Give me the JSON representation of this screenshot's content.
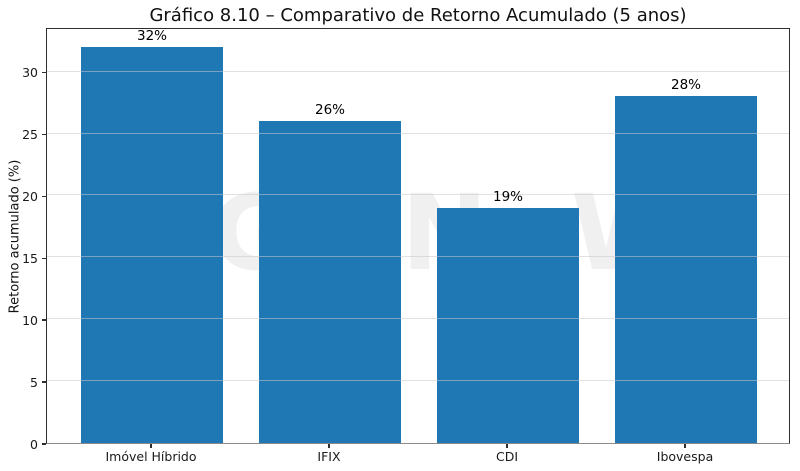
{
  "chart_data": {
    "type": "bar",
    "title": "Gráfico 8.10 – Comparativo de Retorno Acumulado (5 anos)",
    "xlabel": "",
    "ylabel": "Retorno acumulado (%)",
    "categories": [
      "Imóvel Híbrido",
      "IFIX",
      "CDI",
      "Ibovespa"
    ],
    "values": [
      32,
      26,
      19,
      28
    ],
    "value_labels": [
      "32%",
      "26%",
      "19%",
      "28%"
    ],
    "yticks": [
      0,
      5,
      10,
      15,
      20,
      25,
      30
    ],
    "ylim": [
      0,
      33.6
    ],
    "grid": true,
    "legend": "none",
    "bar_color": "#1f77b4",
    "grid_color": "rgba(200,200,200,0.55)",
    "watermark_letters": [
      "G",
      "N",
      "W"
    ]
  }
}
